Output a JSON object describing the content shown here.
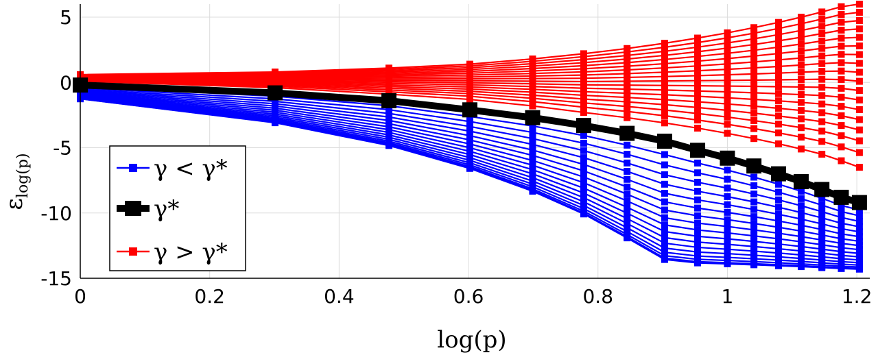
{
  "chart_data": {
    "type": "line",
    "xlabel": "log(p)",
    "ylabel_main": "ε",
    "ylabel_sub": "log(p)",
    "xlim": [
      0,
      1.22
    ],
    "ylim": [
      -15,
      6
    ],
    "xticks": [
      0,
      0.2,
      0.4,
      0.6,
      0.8,
      1,
      1.2
    ],
    "xtick_labels": [
      "0",
      "0.2",
      "0.4",
      "0.6",
      "0.8",
      "1",
      "1.2"
    ],
    "yticks": [
      5,
      0,
      -5,
      -10,
      -15
    ],
    "ytick_labels": [
      "5",
      "0",
      "-5",
      "-10",
      "-15"
    ],
    "grid": true,
    "legend_position": "bottom-left",
    "legend": [
      {
        "label": "γ < γ*",
        "color": "#0000ff"
      },
      {
        "label": "γ*",
        "color": "#000000"
      },
      {
        "label": "γ > γ*",
        "color": "#ff0000"
      }
    ],
    "colors": {
      "blue": "#0000ff",
      "black": "#000000",
      "red": "#ff0000",
      "grid": "#dcdcdc"
    },
    "x": [
      0,
      0.301,
      0.477,
      0.602,
      0.699,
      0.778,
      0.845,
      0.903,
      0.954,
      1.0,
      1.041,
      1.079,
      1.114,
      1.146,
      1.176,
      1.204
    ],
    "series_groups": {
      "blue_count": 18,
      "red_count": 18
    },
    "series_optimal": {
      "name": "γ*",
      "values": [
        -0.2,
        -0.8,
        -1.4,
        -2.1,
        -2.7,
        -3.3,
        -3.9,
        -4.5,
        -5.2,
        -5.8,
        -6.4,
        -7.0,
        -7.6,
        -8.2,
        -8.8,
        -9.2
      ]
    },
    "series_blue_lowest": {
      "values": [
        -1.4,
        -3.4,
        -5.3,
        -7.2,
        -9.1,
        -11.0,
        -13.0,
        -14.8,
        -15.0,
        -15.0,
        -15.0,
        -15.0,
        -15.0,
        -15.0,
        -15.0,
        -15.0
      ]
    },
    "series_red_highest": {
      "values": [
        0.6,
        0.8,
        1.1,
        1.4,
        1.8,
        2.2,
        2.6,
        3.0,
        3.4,
        3.8,
        4.2,
        4.6,
        5.0,
        5.4,
        5.8,
        6.0
      ]
    },
    "series_red_lowest": {
      "values": [
        0.1,
        -0.4,
        -0.9,
        -1.3,
        -1.8,
        -2.3,
        -2.7,
        -3.1,
        -3.5,
        -3.9,
        -4.3,
        -4.7,
        -5.1,
        -5.5,
        -6.0,
        -6.5
      ]
    }
  }
}
